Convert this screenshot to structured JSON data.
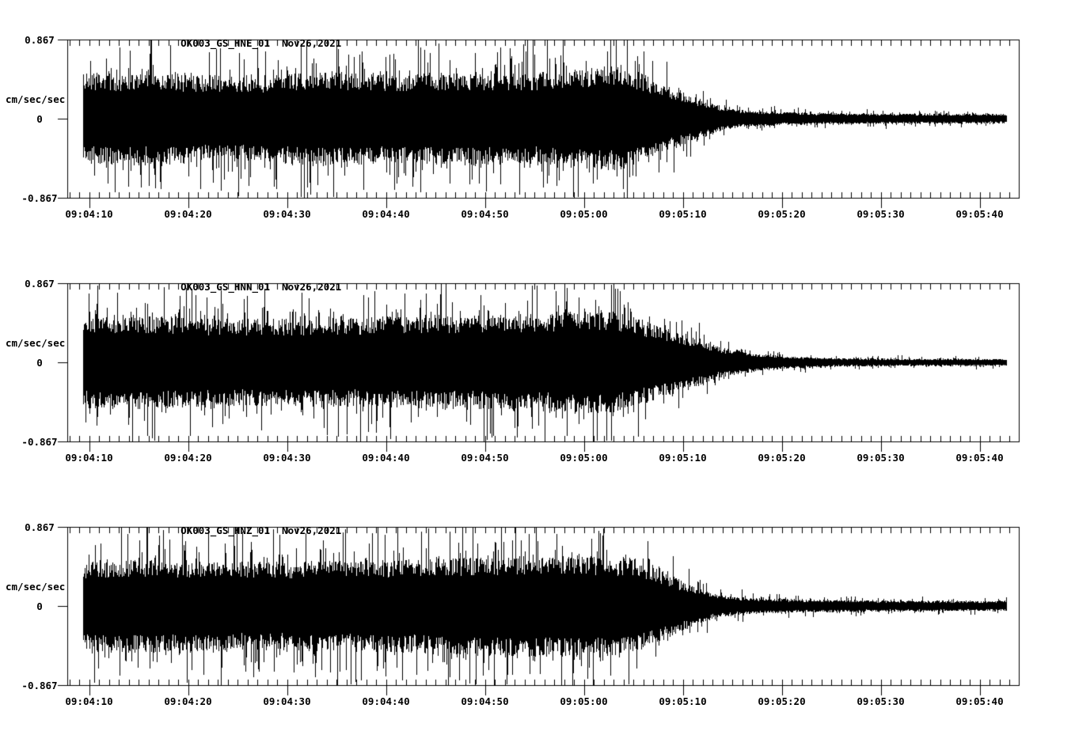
{
  "page": {
    "background_color": "#ffffff",
    "ink_color": "#000000",
    "description": "Three-channel strong-motion seismogram record display"
  },
  "axis": {
    "y": {
      "max_label": "0.867",
      "zero_label": "0",
      "min_label": "-0.867",
      "unit": "cm/sec/sec",
      "max_value": 0.867,
      "min_value": -0.867
    },
    "x": {
      "tick_labels": [
        "09:04:10",
        "09:04:20",
        "09:04:30",
        "09:04:40",
        "09:04:50",
        "09:05:00",
        "09:05:10",
        "09:05:20",
        "09:05:30",
        "09:05:40"
      ],
      "major_interval_s": 10,
      "minor_interval_s": 1
    }
  },
  "panels": [
    {
      "station_channel": "OK003_GS_HNE_01",
      "date": "Nov26,2021"
    },
    {
      "station_channel": "OK003_GS_HNN_01",
      "date": "Nov26,2021"
    },
    {
      "station_channel": "OK003_GS_HNZ_01",
      "date": "Nov26,2021"
    }
  ],
  "chart_data": [
    {
      "type": "line",
      "subtype": "seismogram-waveform",
      "title": "OK003_GS_HNE_01  Nov26,2021",
      "series_name": "OK003_GS_HNE_01",
      "date": "Nov26,2021",
      "ylabel": "cm/sec/sec",
      "ylim": [
        -0.867,
        0.867
      ],
      "x_tick_labels": [
        "09:04:10",
        "09:04:20",
        "09:04:30",
        "09:04:40",
        "09:04:50",
        "09:05:00",
        "09:05:10",
        "09:05:20",
        "09:05:30",
        "09:05:40"
      ],
      "x_major_interval_s": 10,
      "x_minor_interval_s": 1,
      "time_reference": "09:04:10",
      "data_time_range_s": [
        -0.6,
        92.7
      ],
      "peak_amplitude_cm_per_s2": 0.85,
      "envelope_cm_per_s2": [
        [
          -0.6,
          0.36
        ],
        [
          0,
          0.39
        ],
        [
          8,
          0.38
        ],
        [
          16,
          0.36
        ],
        [
          24,
          0.41
        ],
        [
          30,
          0.38
        ],
        [
          38,
          0.4
        ],
        [
          44,
          0.39
        ],
        [
          50,
          0.43
        ],
        [
          54,
          0.45
        ],
        [
          56,
          0.38
        ],
        [
          58,
          0.29
        ],
        [
          60,
          0.23
        ],
        [
          62,
          0.16
        ],
        [
          64,
          0.1
        ],
        [
          66,
          0.074
        ],
        [
          69,
          0.061
        ],
        [
          73,
          0.05
        ],
        [
          80,
          0.043
        ],
        [
          88,
          0.042
        ],
        [
          92.7,
          0.039
        ]
      ]
    },
    {
      "type": "line",
      "subtype": "seismogram-waveform",
      "title": "OK003_GS_HNN_01  Nov26,2021",
      "series_name": "OK003_GS_HNN_01",
      "date": "Nov26,2021",
      "ylabel": "cm/sec/sec",
      "ylim": [
        -0.867,
        0.867
      ],
      "x_tick_labels": [
        "09:04:10",
        "09:04:20",
        "09:04:30",
        "09:04:40",
        "09:04:50",
        "09:05:00",
        "09:05:10",
        "09:05:20",
        "09:05:30",
        "09:05:40"
      ],
      "x_major_interval_s": 10,
      "x_minor_interval_s": 1,
      "time_reference": "09:04:10",
      "data_time_range_s": [
        -0.6,
        92.7
      ],
      "peak_amplitude_cm_per_s2": 0.86,
      "envelope_cm_per_s2": [
        [
          -0.6,
          0.36
        ],
        [
          0,
          0.41
        ],
        [
          6,
          0.4
        ],
        [
          12,
          0.38
        ],
        [
          20,
          0.37
        ],
        [
          28,
          0.39
        ],
        [
          36,
          0.4
        ],
        [
          44,
          0.41
        ],
        [
          50,
          0.44
        ],
        [
          54,
          0.42
        ],
        [
          56,
          0.36
        ],
        [
          58,
          0.3
        ],
        [
          60,
          0.24
        ],
        [
          62,
          0.18
        ],
        [
          64,
          0.13
        ],
        [
          66,
          0.095
        ],
        [
          68,
          0.07
        ],
        [
          71,
          0.05
        ],
        [
          75,
          0.038
        ],
        [
          82,
          0.032
        ],
        [
          92.7,
          0.03
        ]
      ]
    },
    {
      "type": "line",
      "subtype": "seismogram-waveform",
      "title": "OK003_GS_HNZ_01  Nov26,2021",
      "series_name": "OK003_GS_HNZ_01",
      "date": "Nov26,2021",
      "ylabel": "cm/sec/sec",
      "ylim": [
        -0.867,
        0.867
      ],
      "x_tick_labels": [
        "09:04:10",
        "09:04:20",
        "09:04:30",
        "09:04:40",
        "09:04:50",
        "09:05:00",
        "09:05:10",
        "09:05:20",
        "09:05:30",
        "09:05:40"
      ],
      "x_major_interval_s": 10,
      "x_minor_interval_s": 1,
      "time_reference": "09:04:10",
      "data_time_range_s": [
        -0.6,
        92.7
      ],
      "peak_amplitude_cm_per_s2": 0.84,
      "envelope_cm_per_s2": [
        [
          -0.6,
          0.35
        ],
        [
          0,
          0.4
        ],
        [
          8,
          0.4
        ],
        [
          16,
          0.38
        ],
        [
          24,
          0.39
        ],
        [
          32,
          0.4
        ],
        [
          40,
          0.43
        ],
        [
          46,
          0.44
        ],
        [
          52,
          0.43
        ],
        [
          55,
          0.4
        ],
        [
          57,
          0.33
        ],
        [
          59,
          0.25
        ],
        [
          61,
          0.17
        ],
        [
          63,
          0.11
        ],
        [
          65,
          0.085
        ],
        [
          68,
          0.065
        ],
        [
          72,
          0.055
        ],
        [
          80,
          0.048
        ],
        [
          92.7,
          0.042
        ]
      ]
    }
  ]
}
